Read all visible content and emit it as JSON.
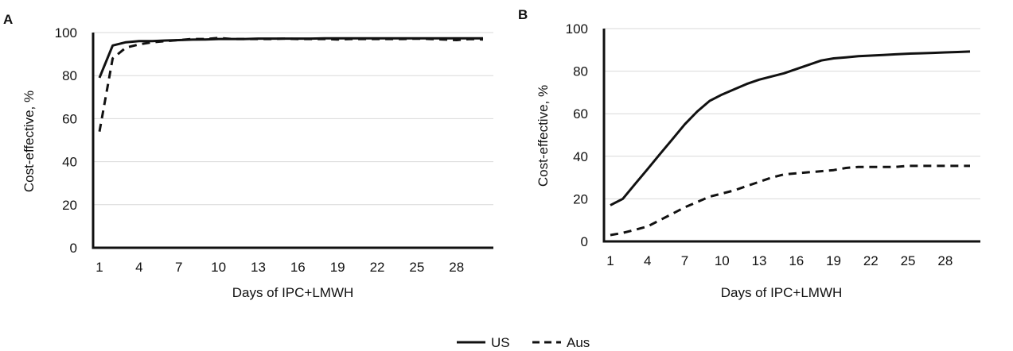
{
  "legend": {
    "items": [
      {
        "label": "US",
        "dash": "solid"
      },
      {
        "label": "Aus",
        "dash": "dashed"
      }
    ]
  },
  "chart_data": [
    {
      "panel_label": "A",
      "type": "line",
      "xlabel": "Days of IPC+LMWH",
      "ylabel": "Cost-effective, %",
      "xlim": [
        1,
        30
      ],
      "ylim": [
        0,
        100
      ],
      "x_ticks": [
        1,
        4,
        7,
        10,
        13,
        16,
        19,
        22,
        25,
        28
      ],
      "y_ticks": [
        0,
        20,
        40,
        60,
        80,
        100
      ],
      "grid": "horizontal",
      "colors": {
        "line": "#111111",
        "grid": "#d9d9d9"
      },
      "x": [
        1,
        2,
        3,
        4,
        5,
        6,
        7,
        8,
        9,
        10,
        11,
        12,
        13,
        14,
        15,
        16,
        17,
        18,
        19,
        20,
        21,
        22,
        23,
        24,
        25,
        26,
        27,
        28,
        29,
        30
      ],
      "series": [
        {
          "name": "US",
          "dash": "solid",
          "values": [
            79,
            94,
            95.5,
            96,
            96,
            96.3,
            96.5,
            96.7,
            96.8,
            97,
            97,
            97,
            97.2,
            97.2,
            97.2,
            97.2,
            97.2,
            97.3,
            97.3,
            97.3,
            97.3,
            97.3,
            97.3,
            97.3,
            97.3,
            97.3,
            97.3,
            97.3,
            97.3,
            97.3
          ]
        },
        {
          "name": "Aus",
          "dash": "dashed",
          "values": [
            54,
            88,
            93,
            94.5,
            95.5,
            96,
            96.5,
            97,
            97,
            97.5,
            97,
            97,
            97,
            97,
            97.2,
            97,
            97,
            97,
            96.8,
            97,
            97,
            97,
            97,
            97,
            97.2,
            97,
            96.8,
            96.5,
            97,
            96.8
          ]
        }
      ]
    },
    {
      "panel_label": "B",
      "type": "line",
      "xlabel": "Days of IPC+LMWH",
      "ylabel": "Cost-effective, %",
      "xlim": [
        1,
        30
      ],
      "ylim": [
        0,
        100
      ],
      "x_ticks": [
        1,
        4,
        7,
        10,
        13,
        16,
        19,
        22,
        25,
        28
      ],
      "y_ticks": [
        0,
        20,
        40,
        60,
        80,
        100
      ],
      "grid": "horizontal",
      "colors": {
        "line": "#111111",
        "grid": "#d9d9d9"
      },
      "x": [
        1,
        2,
        3,
        4,
        5,
        6,
        7,
        8,
        9,
        10,
        11,
        12,
        13,
        14,
        15,
        16,
        17,
        18,
        19,
        20,
        21,
        22,
        23,
        24,
        25,
        26,
        27,
        28,
        29,
        30
      ],
      "series": [
        {
          "name": "US",
          "dash": "solid",
          "values": [
            17,
            20,
            27,
            34,
            41,
            48,
            55,
            61,
            66,
            69,
            71.5,
            74,
            76,
            77.5,
            79,
            81,
            83,
            85,
            86,
            86.5,
            87,
            87.3,
            87.6,
            87.9,
            88.2,
            88.4,
            88.6,
            88.8,
            89,
            89.2
          ]
        },
        {
          "name": "Aus",
          "dash": "dashed",
          "values": [
            3,
            4,
            5.5,
            7,
            10,
            13,
            16,
            18.5,
            21,
            22.5,
            24,
            26,
            28,
            30,
            31.5,
            32,
            32.5,
            33,
            33.5,
            34.5,
            35,
            35,
            35,
            35,
            35.5,
            35.5,
            35.5,
            35.5,
            35.5,
            35.5
          ]
        }
      ]
    }
  ]
}
